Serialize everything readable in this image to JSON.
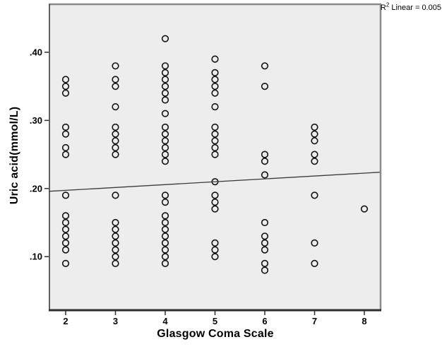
{
  "annotation": {
    "r_prefix": "R",
    "r_sup": "2",
    "r_suffix": " Linear = 0.005"
  },
  "chart_data": {
    "type": "scatter",
    "title": "",
    "xlabel": "Glasgow Coma Scale",
    "ylabel": "Uric acid(mmol/L)",
    "marker": "open-circle",
    "grid": false,
    "legend": "none",
    "xlim": [
      1.674,
      8.326
    ],
    "ylim": [
      0.0214,
      0.4705
    ],
    "x_ticks": {
      "values": [
        2,
        3,
        4,
        5,
        6,
        7,
        8
      ],
      "labels": [
        "2",
        "3",
        "4",
        "5",
        "6",
        "7",
        "8"
      ]
    },
    "y_ticks": {
      "values": [
        0.4,
        0.3,
        0.2,
        0.1
      ],
      "labels": [
        ".40",
        ".30",
        ".20",
        ".10"
      ]
    },
    "series": [
      {
        "name": "observations",
        "columns": [
          {
            "x": 2,
            "ys": [
              0.36,
              0.35,
              0.34,
              0.29,
              0.28,
              0.26,
              0.25,
              0.19,
              0.16,
              0.15,
              0.14,
              0.13,
              0.12,
              0.11,
              0.09
            ]
          },
          {
            "x": 3,
            "ys": [
              0.38,
              0.36,
              0.35,
              0.32,
              0.29,
              0.28,
              0.27,
              0.26,
              0.25,
              0.19,
              0.15,
              0.14,
              0.13,
              0.12,
              0.11,
              0.1,
              0.09
            ]
          },
          {
            "x": 4,
            "ys": [
              0.42,
              0.38,
              0.37,
              0.36,
              0.35,
              0.34,
              0.33,
              0.31,
              0.29,
              0.28,
              0.27,
              0.26,
              0.25,
              0.24,
              0.19,
              0.18,
              0.16,
              0.15,
              0.14,
              0.13,
              0.12,
              0.11,
              0.1,
              0.09
            ]
          },
          {
            "x": 5,
            "ys": [
              0.39,
              0.37,
              0.36,
              0.35,
              0.34,
              0.32,
              0.29,
              0.28,
              0.27,
              0.26,
              0.25,
              0.21,
              0.19,
              0.18,
              0.17,
              0.12,
              0.11,
              0.1
            ]
          },
          {
            "x": 6,
            "ys": [
              0.38,
              0.35,
              0.25,
              0.24,
              0.22,
              0.15,
              0.13,
              0.12,
              0.11,
              0.09,
              0.08
            ]
          },
          {
            "x": 7,
            "ys": [
              0.29,
              0.28,
              0.27,
              0.25,
              0.24,
              0.19,
              0.12,
              0.09
            ]
          },
          {
            "x": 8,
            "ys": [
              0.17
            ]
          }
        ]
      }
    ],
    "trendline": {
      "type": "linear",
      "r2": 0.005,
      "x1": 1.674,
      "y1": 0.196,
      "x2": 8.326,
      "y2": 0.224
    },
    "r2_annotation_text": "R2 Linear = 0.005",
    "colors": {
      "plot_background": "#ededed",
      "frame_grey": "#8a8a8a",
      "axis_dark": "#2e2e2e",
      "point_stroke": "#111111",
      "trend_line": "#3c3c3c",
      "tick_label": "#000000"
    }
  }
}
